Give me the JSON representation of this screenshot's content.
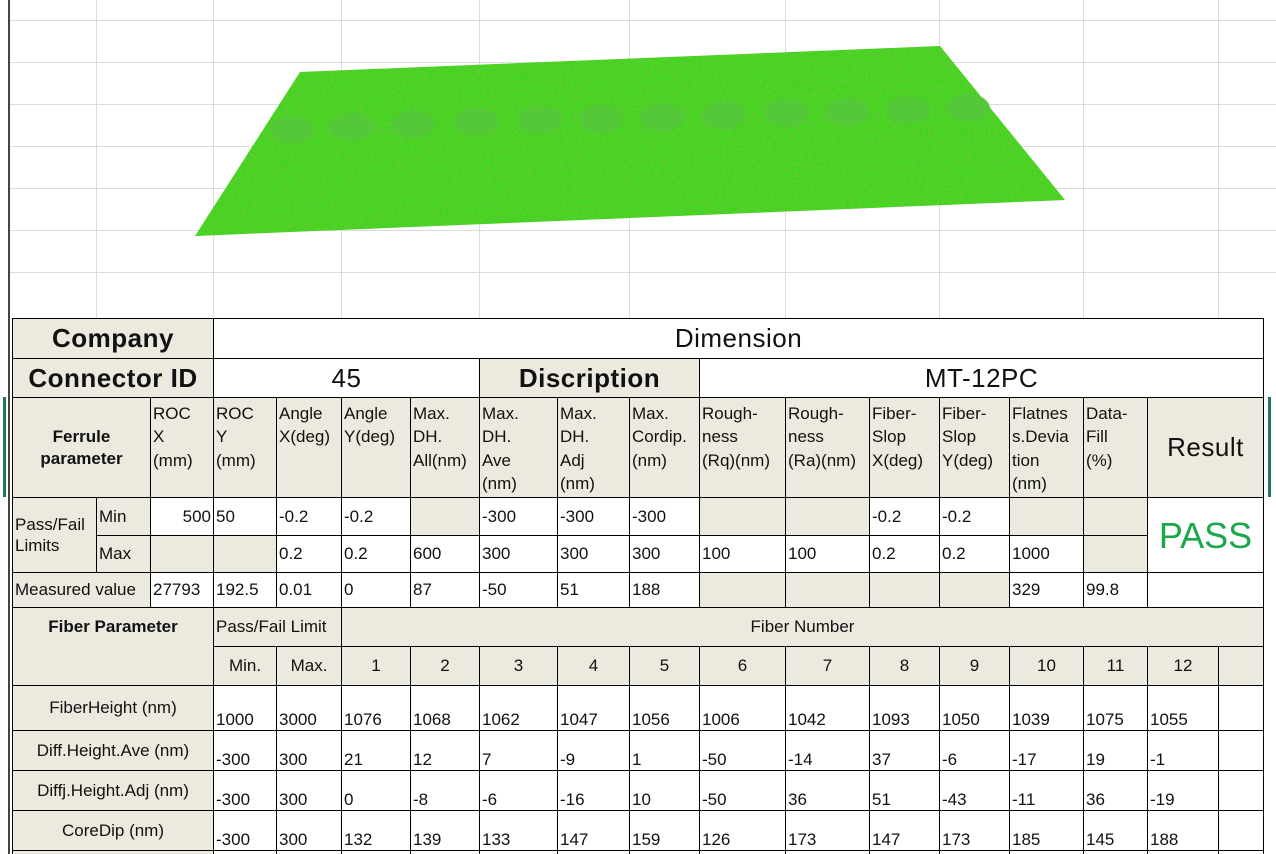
{
  "header": {
    "company_label": "Company",
    "company": "Dimension",
    "connector_id_label": "Connector  ID",
    "connector_id": "45",
    "description_label": "Discription",
    "description": "MT-12PC"
  },
  "ferrule": {
    "label": "Ferrule\nparameter",
    "columns": [
      "ROC\nX\n(mm)",
      "ROC\nY\n(mm)",
      "Angle\nX(deg)",
      "Angle\nY(deg)",
      "Max.\nDH.\nAll(nm)",
      "Max.\nDH.\nAve\n(nm)",
      "Max.\nDH.\nAdj\n(nm)",
      "Max.\nCordip.\n(nm)",
      "Rough-\nness\n(Rq)(nm)",
      "Rough-\nness\n(Ra)(nm)",
      "Fiber-\nSlop\nX(deg)",
      "Fiber-\nSlop\nY(deg)",
      "Flatnes\ns.Devia\ntion\n(nm)",
      "Data-\nFill\n(%)"
    ],
    "result_label": "Result",
    "limits_label": "Pass/Fail Limits",
    "min_label": "Min",
    "max_label": "Max",
    "min": [
      500,
      50,
      -0.2,
      -0.2,
      null,
      -300,
      -300,
      -300,
      null,
      null,
      -0.2,
      -0.2,
      null,
      null
    ],
    "max": [
      null,
      null,
      0.2,
      0.2,
      600,
      300,
      300,
      300,
      100,
      100,
      0.2,
      0.2,
      1000,
      null
    ],
    "measured_label": "Measured value",
    "measured": [
      27793,
      192.5,
      0.01,
      0,
      87,
      -50,
      51,
      188,
      null,
      null,
      null,
      null,
      329,
      99.8
    ],
    "result": "PASS"
  },
  "fiber": {
    "label": "Fiber Parameter",
    "limit_label": "Pass/Fail Limit",
    "number_label": "Fiber Number",
    "min_label": "Min.",
    "max_label": "Max.",
    "numbers": [
      1,
      2,
      3,
      4,
      5,
      6,
      7,
      8,
      9,
      10,
      11,
      12
    ],
    "rows": [
      {
        "name": "FiberHeight (nm)",
        "min": 1000,
        "max": 3000,
        "values": [
          1076,
          1068,
          1062,
          1047,
          1056,
          1006,
          1042,
          1093,
          1050,
          1039,
          1075,
          1055
        ]
      },
      {
        "name": "Diff.Height.Ave (nm)",
        "min": -300,
        "max": 300,
        "values": [
          21,
          12,
          7,
          -9,
          1,
          -50,
          -14,
          37,
          -6,
          -17,
          19,
          -1
        ]
      },
      {
        "name": "Diffj.Height.Adj (nm)",
        "min": -300,
        "max": 300,
        "values": [
          0,
          -8,
          -6,
          -16,
          10,
          -50,
          36,
          51,
          -43,
          -11,
          36,
          -19
        ]
      },
      {
        "name": "CoreDip (nm)",
        "min": -300,
        "max": 300,
        "values": [
          132,
          139,
          133,
          147,
          159,
          126,
          173,
          147,
          173,
          185,
          145,
          188
        ]
      }
    ]
  }
}
